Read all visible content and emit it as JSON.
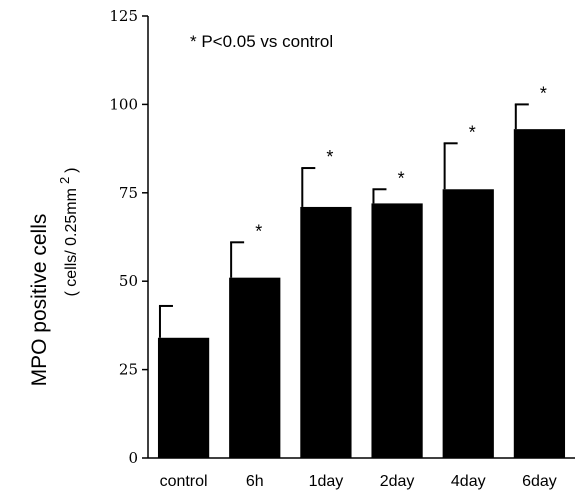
{
  "chart_data": {
    "type": "bar",
    "categories": [
      "control",
      "6h",
      "1day",
      "2day",
      "4day",
      "6day"
    ],
    "values": [
      34,
      51,
      71,
      72,
      76,
      93
    ],
    "errors": [
      9,
      10,
      11,
      4,
      13,
      7
    ],
    "significant": [
      false,
      true,
      true,
      true,
      true,
      true
    ],
    "significance_marker": "*",
    "annotation": "* P<0.05 vs control",
    "ylabel": "MPO positive cells",
    "ylabel_unit_prefix": "( cells/ 0.25mm",
    "ylabel_unit_sup": "2",
    "ylabel_unit_suffix": ")",
    "ylim": [
      0,
      125
    ],
    "yticks": [
      0,
      25,
      50,
      75,
      100,
      125
    ],
    "grid": false,
    "colors": {
      "bar": "#000000",
      "axis": "#000000"
    }
  }
}
